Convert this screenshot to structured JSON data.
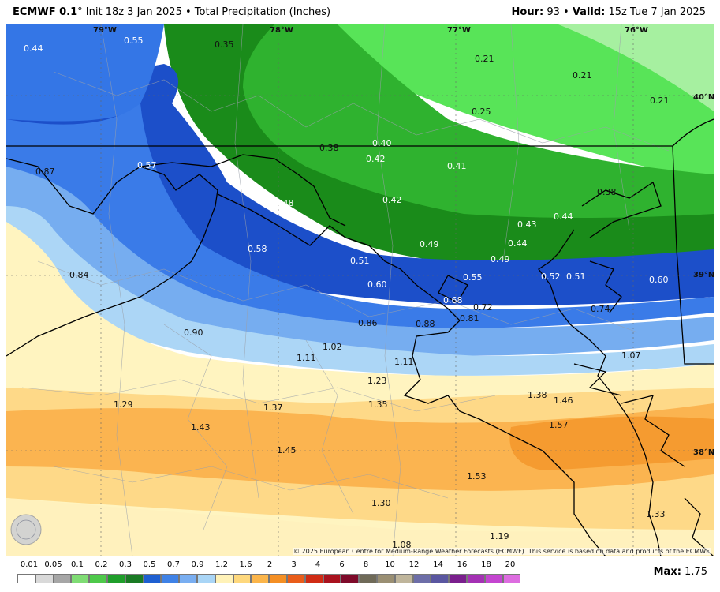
{
  "header": {
    "model": "ECMWF 0.1",
    "model_degree": "°",
    "info": " Init 18z 3 Jan 2025 • Total Precipitation (Inches)",
    "hour_label": "Hour:",
    "hour_value": " 93 • ",
    "valid_label": "Valid:",
    "valid_value": " 15z Tue 7 Jan 2025"
  },
  "map": {
    "longitude_labels": [
      "79°W",
      "78°W",
      "77°W",
      "76°W"
    ],
    "latitude_labels": [
      "40°N",
      "39°N",
      "38°N"
    ],
    "precip_values": [
      "0.44",
      "0.55",
      "0.35",
      "0.21",
      "0.21",
      "0.21",
      "0.25",
      "0.38",
      "0.40",
      "0.42",
      "0.41",
      "0.87",
      "0.57",
      "0.48",
      "0.42",
      "0.38",
      "0.44",
      "0.43",
      "0.44",
      "0.49",
      "0.49",
      "0.58",
      "0.51",
      "0.55",
      "0.52",
      "0.51",
      "0.60",
      "0.84",
      "0.60",
      "0.68",
      "0.72",
      "0.81",
      "0.74",
      "0.90",
      "0.86",
      "0.88",
      "1.02",
      "1.11",
      "1.11",
      "1.07",
      "1.23",
      "1.29",
      "1.37",
      "1.35",
      "1.38",
      "1.46",
      "1.43",
      "1.57",
      "1.45",
      "1.53",
      "1.30",
      "1.33",
      "1.08",
      "1.19"
    ],
    "credit": "© 2025 European Centre for Medium-Range Weather Forecasts (ECMWF). This service is based on data and products of the ECMWF.",
    "logo_text": "WEATHERBELL"
  },
  "legend": {
    "ticks": [
      "0.01",
      "0.05",
      "0.1",
      "0.2",
      "0.3",
      "0.5",
      "0.7",
      "0.9",
      "1.2",
      "1.6",
      "2",
      "3",
      "4",
      "6",
      "8",
      "10",
      "12",
      "14",
      "16",
      "18",
      "20"
    ],
    "colors": [
      "#ffffff",
      "#d9d9d9",
      "#a6a6a6",
      "#7fdc74",
      "#4ec94a",
      "#1f9e2a",
      "#1a7a24",
      "#1e5fd1",
      "#3f82e6",
      "#79aef1",
      "#a9d5f6",
      "#fff2b8",
      "#fed87d",
      "#fbb54a",
      "#f48f24",
      "#e95d1a",
      "#d02b14",
      "#a9121e",
      "#7e0a2a",
      "#6f6a58",
      "#9a8f73",
      "#bfb59b",
      "#6d6ea8",
      "#5a56a0",
      "#7a1f8d",
      "#a431b4",
      "#c445d0",
      "#dd6de0"
    ],
    "max_label": "Max:",
    "max_value": " 1.75"
  }
}
